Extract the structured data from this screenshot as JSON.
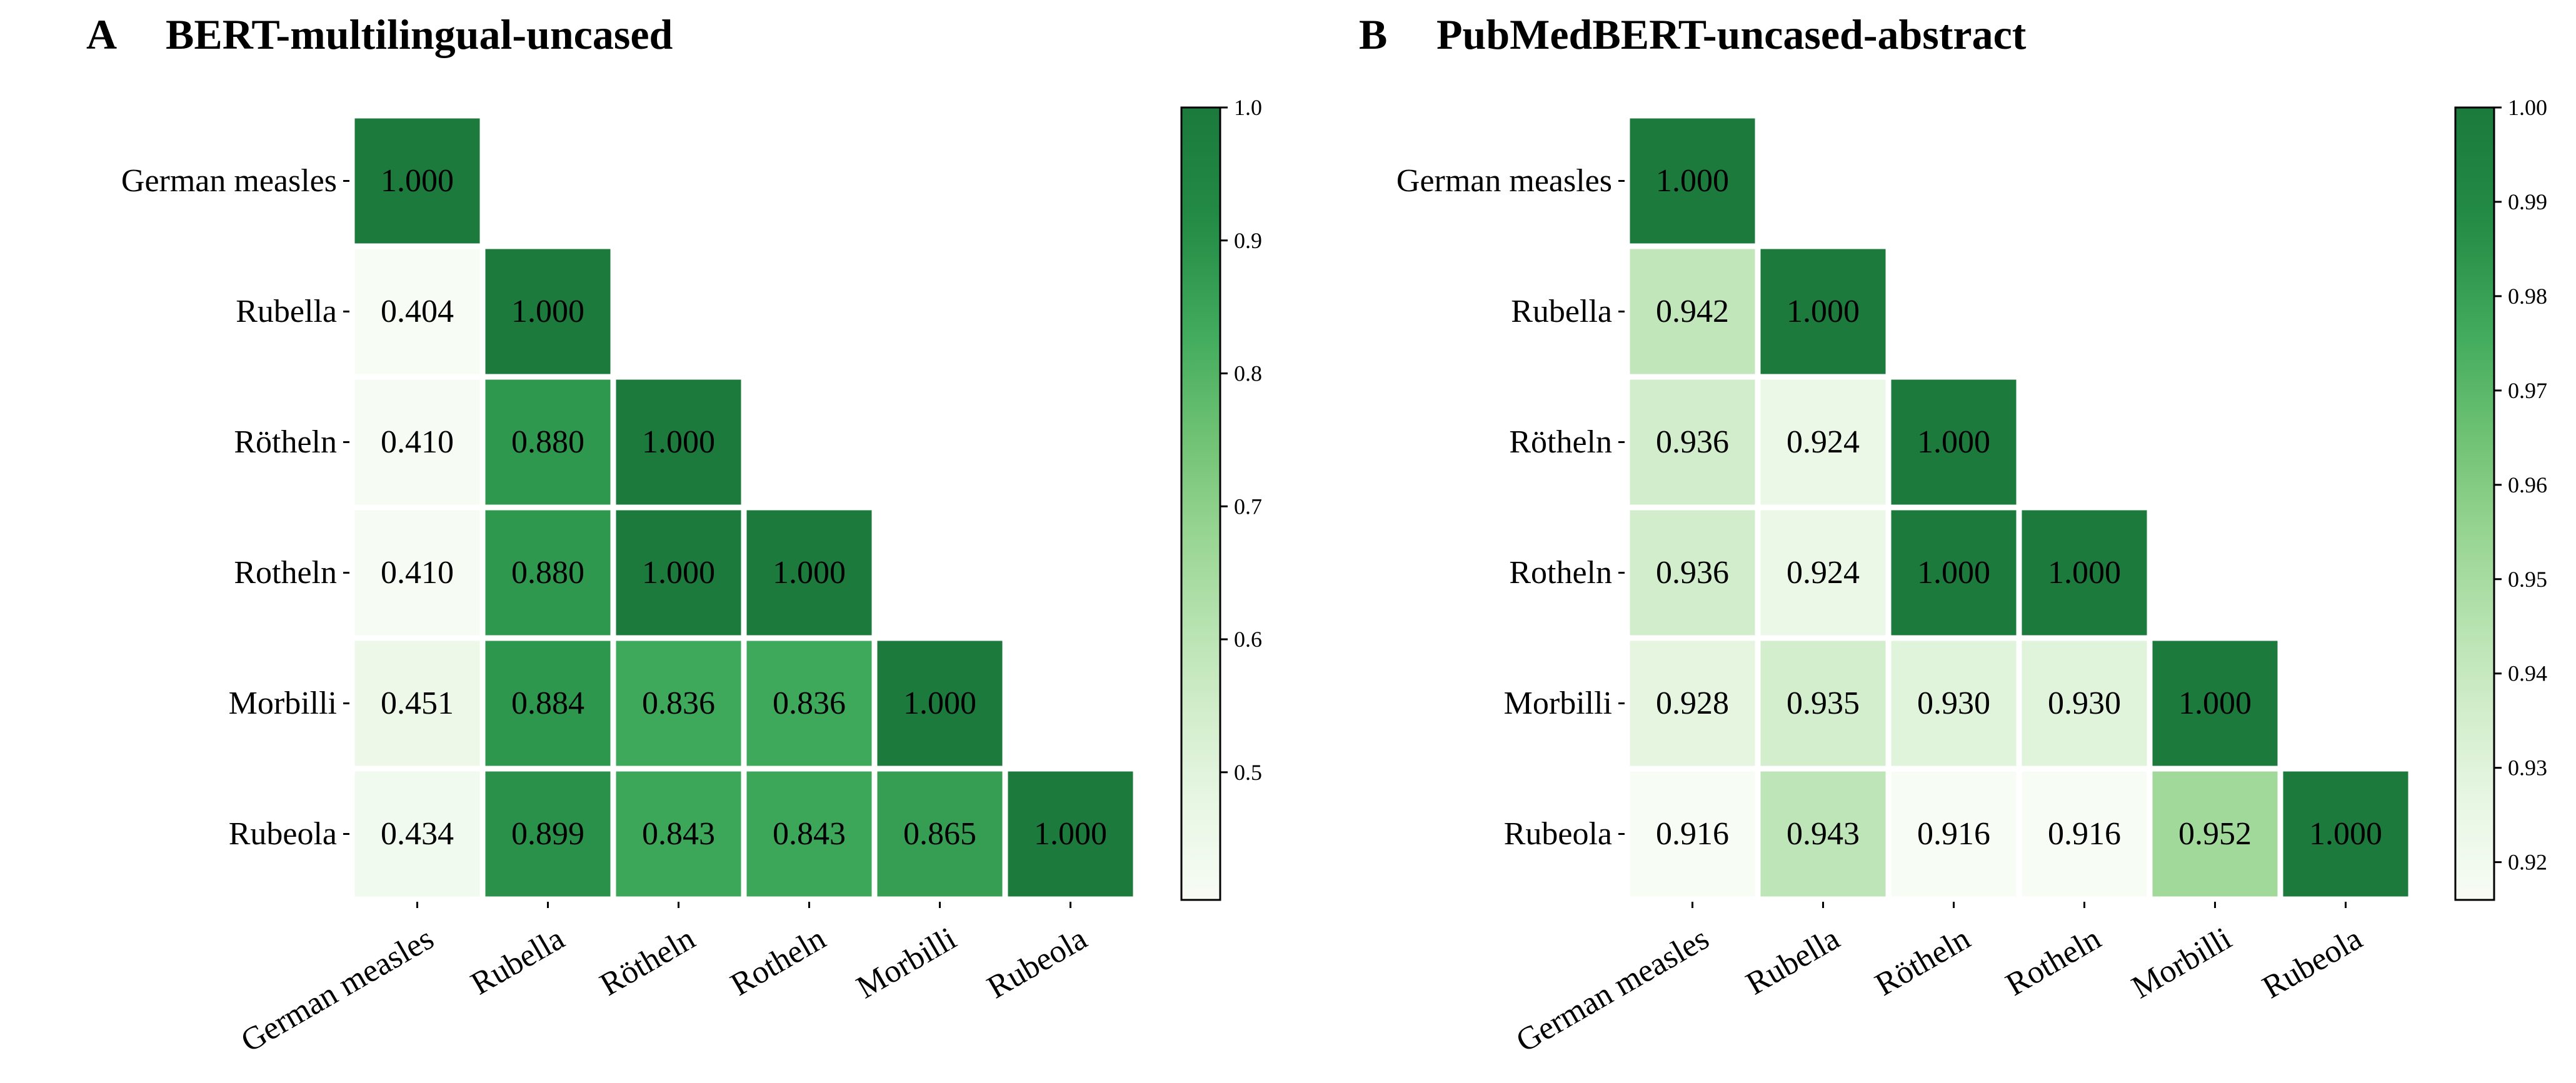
{
  "chart_data": [
    {
      "type": "heatmap",
      "panel_letter": "A",
      "title": "BERT-multilingual-uncased",
      "labels": [
        "German measles",
        "Rubella",
        "Rötheln",
        "Rotheln",
        "Morbilli",
        "Rubeola"
      ],
      "values": [
        [
          1.0
        ],
        [
          0.404,
          1.0
        ],
        [
          0.41,
          0.88,
          1.0
        ],
        [
          0.41,
          0.88,
          1.0,
          1.0
        ],
        [
          0.451,
          0.884,
          0.836,
          0.836,
          1.0
        ],
        [
          0.434,
          0.899,
          0.843,
          0.843,
          0.865,
          1.0
        ]
      ],
      "cell_labels": [
        [
          "1.000"
        ],
        [
          "0.404",
          "1.000"
        ],
        [
          "0.410",
          "0.880",
          "1.000"
        ],
        [
          "0.410",
          "0.880",
          "1.000",
          "1.000"
        ],
        [
          "0.451",
          "0.884",
          "0.836",
          "0.836",
          "1.000"
        ],
        [
          "0.434",
          "0.899",
          "0.843",
          "0.843",
          "0.865",
          "1.000"
        ]
      ],
      "colorbar": {
        "vmin": 0.404,
        "vmax": 1.0,
        "ticks": [
          0.5,
          0.6,
          0.7,
          0.8,
          0.9,
          1.0
        ],
        "tick_labels": [
          "0.5",
          "0.6",
          "0.7",
          "0.8",
          "0.9",
          "1.0"
        ]
      },
      "colormap": [
        "#f7fcf5",
        "#e5f5e0",
        "#c7e9c0",
        "#a1d99b",
        "#74c476",
        "#41ab5d",
        "#238b45",
        "#1b7a3c"
      ]
    },
    {
      "type": "heatmap",
      "panel_letter": "B",
      "title": "PubMedBERT-uncased-abstract",
      "labels": [
        "German measles",
        "Rubella",
        "Rötheln",
        "Rotheln",
        "Morbilli",
        "Rubeola"
      ],
      "values": [
        [
          1.0
        ],
        [
          0.942,
          1.0
        ],
        [
          0.936,
          0.924,
          1.0
        ],
        [
          0.936,
          0.924,
          1.0,
          1.0
        ],
        [
          0.928,
          0.935,
          0.93,
          0.93,
          1.0
        ],
        [
          0.916,
          0.943,
          0.916,
          0.916,
          0.952,
          1.0
        ]
      ],
      "cell_labels": [
        [
          "1.000"
        ],
        [
          "0.942",
          "1.000"
        ],
        [
          "0.936",
          "0.924",
          "1.000"
        ],
        [
          "0.936",
          "0.924",
          "1.000",
          "1.000"
        ],
        [
          "0.928",
          "0.935",
          "0.930",
          "0.930",
          "1.000"
        ],
        [
          "0.916",
          "0.943",
          "0.916",
          "0.916",
          "0.952",
          "1.000"
        ]
      ],
      "colorbar": {
        "vmin": 0.916,
        "vmax": 1.0,
        "ticks": [
          0.92,
          0.93,
          0.94,
          0.95,
          0.96,
          0.97,
          0.98,
          0.99,
          1.0
        ],
        "tick_labels": [
          "0.92",
          "0.93",
          "0.94",
          "0.95",
          "0.96",
          "0.97",
          "0.98",
          "0.99",
          "1.00"
        ]
      },
      "colormap": [
        "#f7fcf5",
        "#e5f5e0",
        "#c7e9c0",
        "#a1d99b",
        "#74c476",
        "#41ab5d",
        "#238b45",
        "#1b7a3c"
      ]
    }
  ]
}
